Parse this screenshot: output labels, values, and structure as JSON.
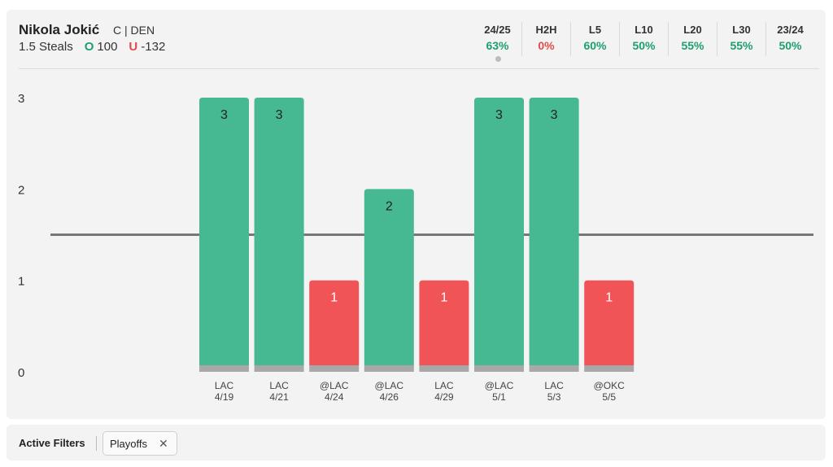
{
  "header": {
    "player_name": "Nikola Jokić",
    "player_meta": "C | DEN",
    "prop_line": "1.5 Steals",
    "over_mark": "O",
    "over_odds": "100",
    "under_mark": "U",
    "under_odds": "-132"
  },
  "stats": [
    {
      "label": "24/25",
      "value": "63%",
      "status": "good",
      "selected": true
    },
    {
      "label": "H2H",
      "value": "0%",
      "status": "bad",
      "selected": false
    },
    {
      "label": "L5",
      "value": "60%",
      "status": "good",
      "selected": false
    },
    {
      "label": "L10",
      "value": "50%",
      "status": "good",
      "selected": false
    },
    {
      "label": "L20",
      "value": "55%",
      "status": "good",
      "selected": false
    },
    {
      "label": "L30",
      "value": "55%",
      "status": "good",
      "selected": false
    },
    {
      "label": "23/24",
      "value": "50%",
      "status": "good",
      "selected": false
    }
  ],
  "colors": {
    "over": "#46b993",
    "under": "#f05457",
    "line": "#777777",
    "base": "#a8a8a8"
  },
  "chart_data": {
    "type": "bar",
    "categories": [
      {
        "opponent": "LAC",
        "date": "4/19"
      },
      {
        "opponent": "LAC",
        "date": "4/21"
      },
      {
        "opponent": "@LAC",
        "date": "4/24"
      },
      {
        "opponent": "@LAC",
        "date": "4/26"
      },
      {
        "opponent": "LAC",
        "date": "4/29"
      },
      {
        "opponent": "@LAC",
        "date": "5/1"
      },
      {
        "opponent": "LAC",
        "date": "5/3"
      },
      {
        "opponent": "@OKC",
        "date": "5/5"
      }
    ],
    "values": [
      3,
      3,
      1,
      2,
      1,
      3,
      3,
      1
    ],
    "threshold": 1.5,
    "yticks": [
      "0",
      "1",
      "2",
      "3"
    ],
    "ylim": [
      0,
      3
    ],
    "grid": false
  },
  "filters": {
    "label": "Active Filters",
    "chips": [
      {
        "label": "Playoffs",
        "remove": "✕"
      }
    ]
  }
}
